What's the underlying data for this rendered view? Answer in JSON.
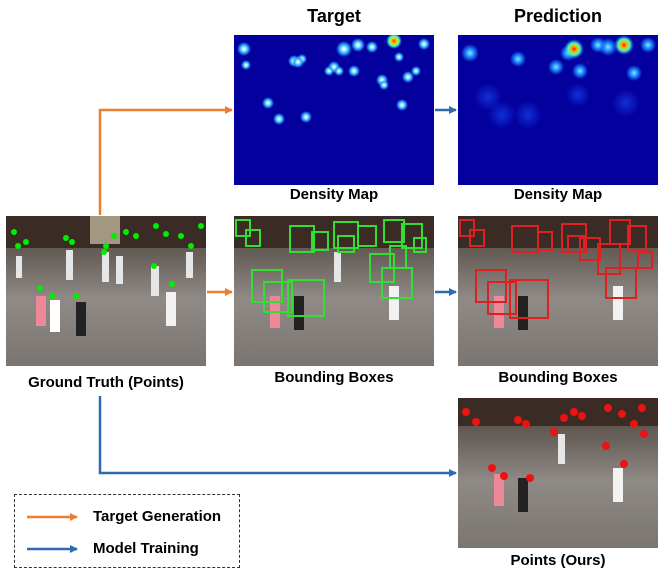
{
  "header": {
    "target": "Target",
    "prediction": "Prediction"
  },
  "captions": {
    "ground_truth": "Ground Truth (Points)",
    "target_density": "Density Map",
    "pred_density": "Density Map",
    "target_boxes": "Bounding Boxes",
    "pred_boxes": "Bounding Boxes",
    "points_ours": "Points (Ours)"
  },
  "legend": {
    "target_generation": "Target Generation",
    "model_training": "Model Training"
  },
  "colors": {
    "target_generation_arrow": "#ed7d31",
    "model_training_arrow": "#2e6bb0",
    "density_background": "#04009e",
    "gt_points": "#22dd22",
    "target_boxes": "#33dd33",
    "pred_boxes": "#e02020",
    "pred_points": "#ee1111"
  }
}
